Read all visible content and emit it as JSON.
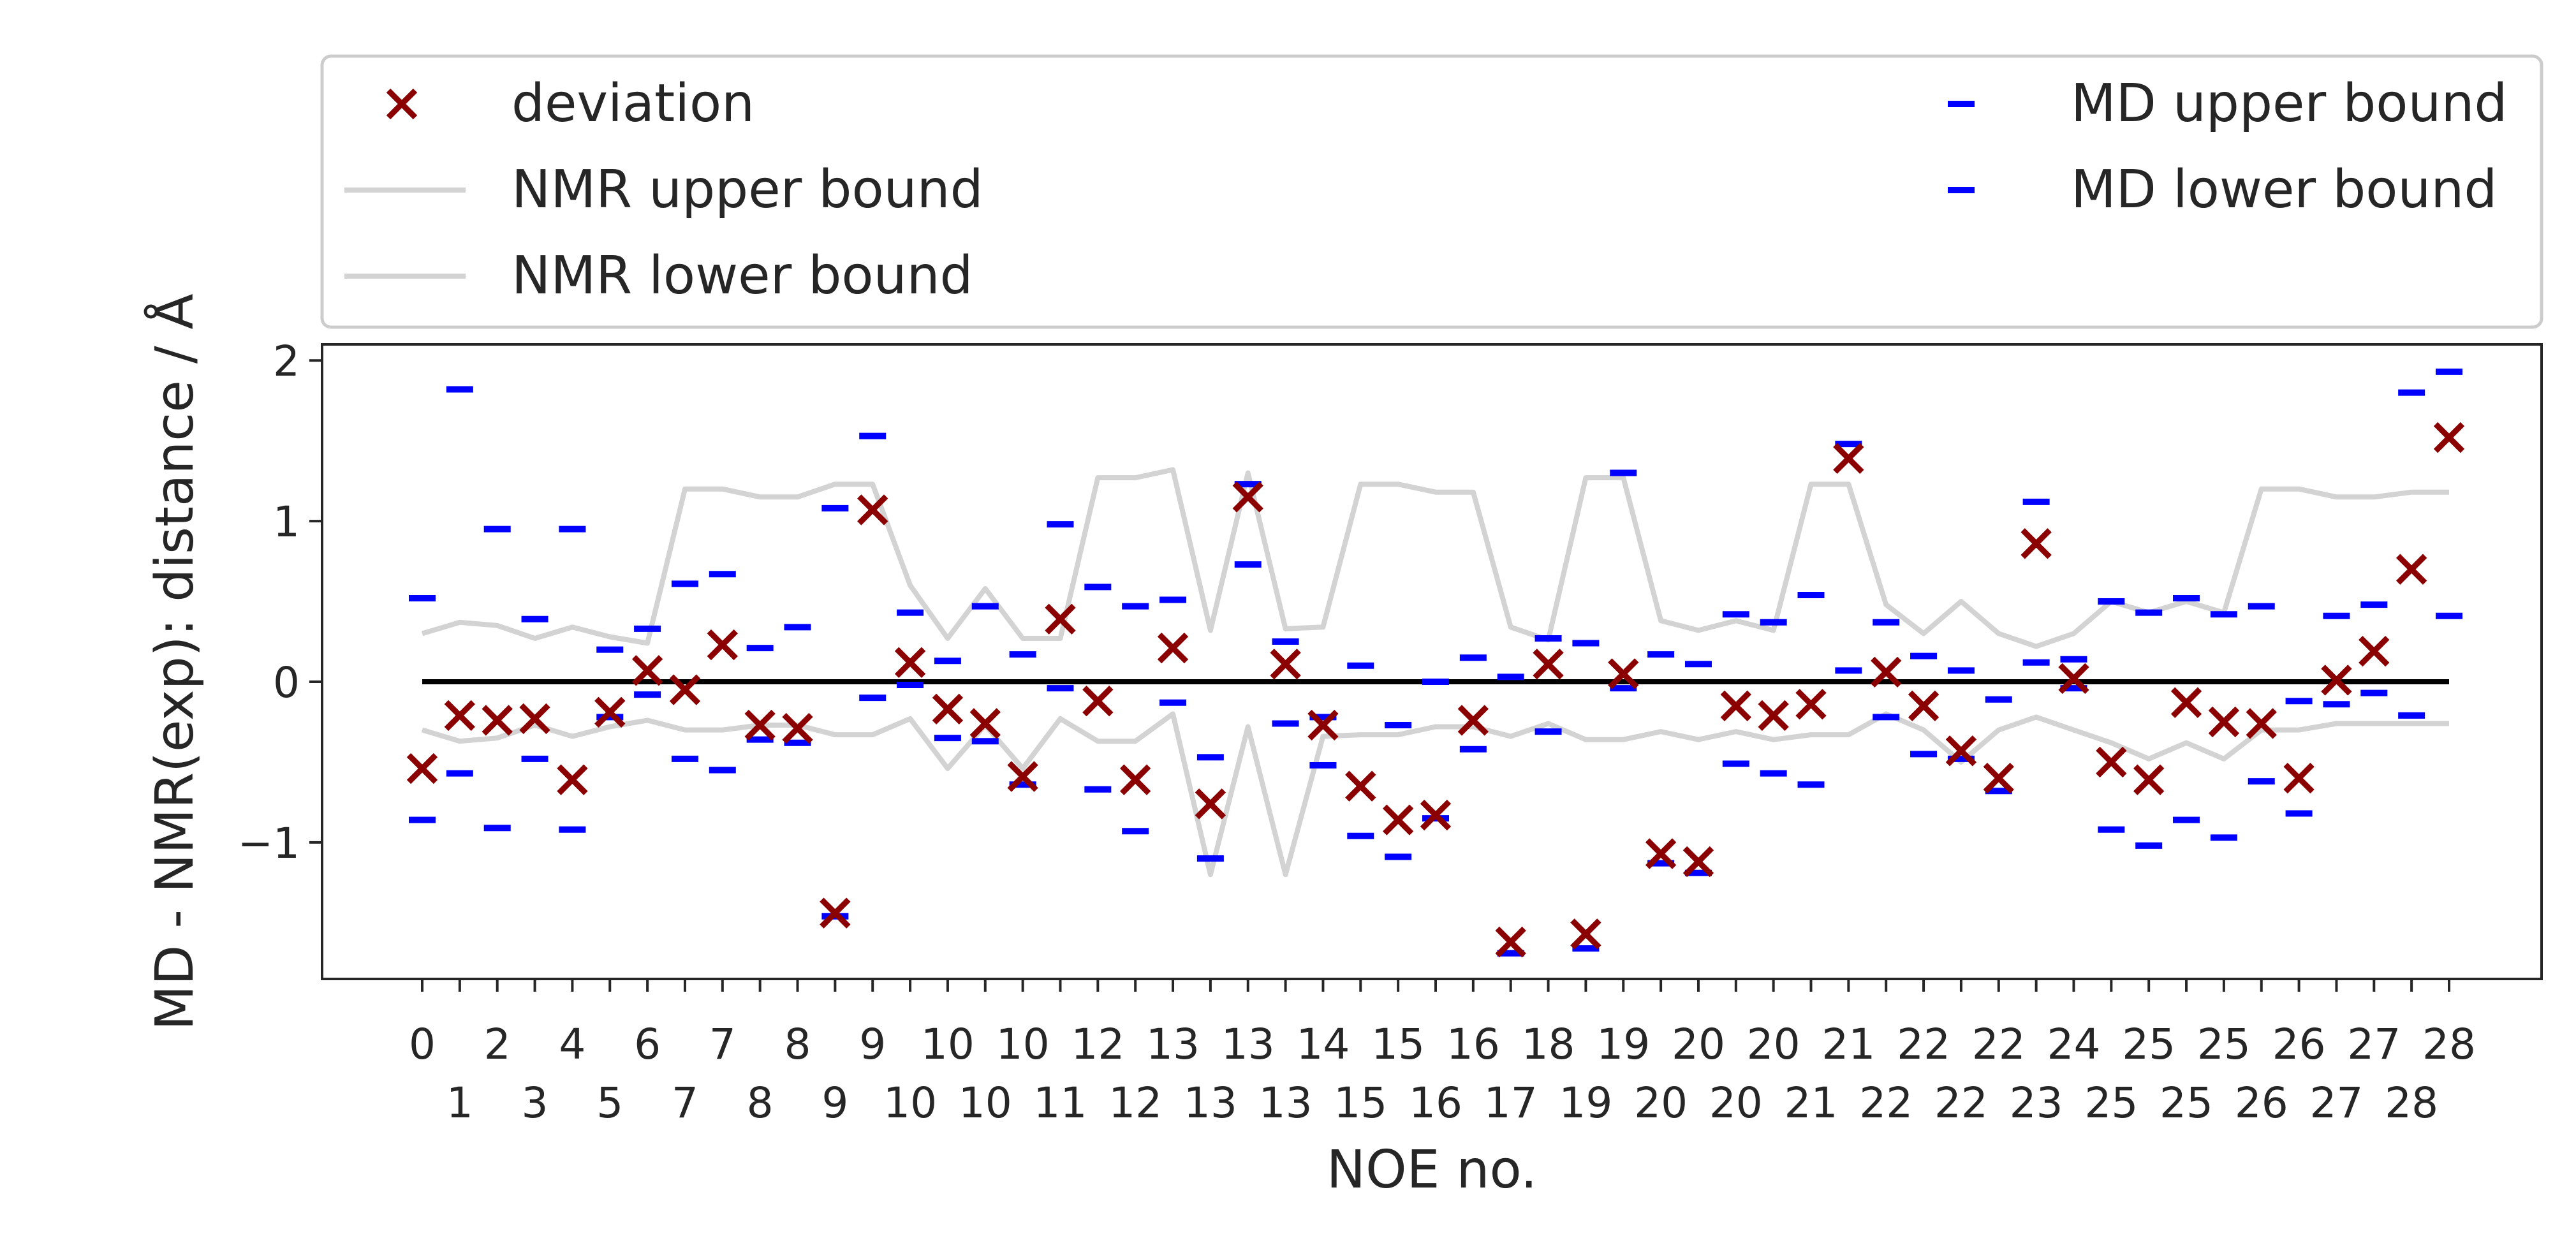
{
  "chart_data": {
    "type": "scatter",
    "title": "",
    "xlabel": "NOE no.",
    "ylabel": "MD - NMR(exp): distance / Å",
    "ylim": [
      -1.85,
      2.1
    ],
    "yticks": [
      -1,
      0,
      1,
      2
    ],
    "ytick_labels": [
      "−1",
      "0",
      "1",
      "2"
    ],
    "grid": false,
    "legend_placement": "above-plot",
    "x_labels": [
      "0",
      "1",
      "2",
      "3",
      "4",
      "5",
      "6",
      "7",
      "7",
      "8",
      "8",
      "9",
      "9",
      "10",
      "10",
      "10",
      "10",
      "11",
      "12",
      "12",
      "13",
      "13",
      "13",
      "13",
      "14",
      "15",
      "15",
      "16",
      "16",
      "17",
      "18",
      "19",
      "19",
      "20",
      "20",
      "20",
      "20",
      "21",
      "21",
      "22",
      "22",
      "22",
      "22",
      "23",
      "24",
      "25",
      "25",
      "25",
      "25",
      "26",
      "26",
      "27",
      "27",
      "28",
      "28"
    ],
    "series": [
      {
        "name": "deviation",
        "marker": "x",
        "color": "#8b0000",
        "values": [
          -0.54,
          -0.21,
          -0.24,
          -0.23,
          -0.61,
          -0.19,
          0.07,
          -0.05,
          0.23,
          -0.27,
          -0.29,
          -1.44,
          1.07,
          0.12,
          -0.17,
          -0.26,
          -0.59,
          0.39,
          -0.12,
          -0.61,
          0.21,
          -0.76,
          1.15,
          0.11,
          -0.27,
          -0.65,
          -0.86,
          -0.83,
          -0.24,
          -1.62,
          0.11,
          -1.57,
          0.05,
          -1.07,
          -1.12,
          -0.15,
          -0.21,
          -0.14,
          1.39,
          0.06,
          -0.15,
          -0.43,
          -0.6,
          0.86,
          0.02,
          -0.5,
          -0.61,
          -0.13,
          -0.25,
          -0.26,
          -0.6,
          0.01,
          0.19,
          0.7,
          1.52
        ]
      },
      {
        "name": "NMR upper bound",
        "marker": "line",
        "color": "#d3d3d3",
        "values": [
          0.3,
          0.37,
          0.35,
          0.27,
          0.34,
          0.28,
          0.24,
          1.2,
          1.2,
          1.15,
          1.15,
          1.23,
          1.23,
          0.6,
          0.27,
          0.58,
          0.27,
          0.27,
          1.27,
          1.27,
          1.32,
          0.32,
          1.3,
          0.33,
          0.34,
          1.23,
          1.23,
          1.18,
          1.18,
          0.34,
          0.26,
          1.27,
          1.27,
          0.38,
          0.32,
          0.38,
          0.32,
          1.23,
          1.23,
          0.48,
          0.3,
          0.5,
          0.3,
          0.22,
          0.3,
          0.5,
          0.43,
          0.5,
          0.43,
          1.2,
          1.2,
          1.15,
          1.15,
          1.18,
          1.18
        ]
      },
      {
        "name": "NMR lower bound",
        "marker": "line",
        "color": "#d3d3d3",
        "values": [
          -0.3,
          -0.37,
          -0.35,
          -0.27,
          -0.34,
          -0.28,
          -0.24,
          -0.3,
          -0.3,
          -0.27,
          -0.27,
          -0.33,
          -0.33,
          -0.23,
          -0.54,
          -0.27,
          -0.54,
          -0.23,
          -0.37,
          -0.37,
          -0.2,
          -1.2,
          -0.28,
          -1.2,
          -0.34,
          -0.33,
          -0.33,
          -0.28,
          -0.28,
          -0.34,
          -0.26,
          -0.36,
          -0.36,
          -0.31,
          -0.36,
          -0.31,
          -0.36,
          -0.33,
          -0.33,
          -0.2,
          -0.3,
          -0.5,
          -0.3,
          -0.22,
          -0.3,
          -0.38,
          -0.48,
          -0.38,
          -0.48,
          -0.3,
          -0.3,
          -0.26,
          -0.26,
          -0.26,
          -0.26
        ]
      },
      {
        "name": "MD upper bound",
        "marker": "dash",
        "color": "#0000ff",
        "values": [
          0.52,
          1.82,
          0.95,
          0.39,
          0.95,
          0.2,
          0.33,
          0.61,
          0.67,
          0.21,
          0.34,
          1.08,
          1.53,
          0.43,
          0.13,
          0.47,
          0.17,
          0.98,
          0.59,
          0.47,
          0.51,
          -0.47,
          1.23,
          0.25,
          -0.22,
          0.1,
          -0.27,
          0.0,
          0.15,
          0.03,
          0.27,
          0.24,
          1.3,
          0.17,
          0.11,
          0.42,
          0.37,
          0.54,
          1.48,
          0.37,
          0.16,
          0.07,
          -0.11,
          1.12,
          0.14,
          0.5,
          0.43,
          0.52,
          0.42,
          0.47,
          -0.12,
          0.41,
          0.48,
          1.8,
          1.93
        ]
      },
      {
        "name": "MD lower bound",
        "marker": "dash",
        "color": "#0000ff",
        "values": [
          -0.86,
          -0.57,
          -0.91,
          -0.48,
          -0.92,
          -0.22,
          -0.08,
          -0.48,
          -0.55,
          -0.36,
          -0.38,
          -1.46,
          -0.1,
          -0.02,
          -0.35,
          -0.37,
          -0.64,
          -0.04,
          -0.67,
          -0.93,
          -0.13,
          -1.1,
          0.73,
          -0.26,
          -0.52,
          -0.96,
          -1.09,
          -0.85,
          -0.42,
          -1.69,
          -0.31,
          -1.66,
          -0.04,
          -1.13,
          -1.19,
          -0.51,
          -0.57,
          -0.64,
          0.07,
          -0.22,
          -0.45,
          -0.48,
          -0.68,
          0.12,
          -0.04,
          -0.92,
          -1.02,
          -0.86,
          -0.97,
          -0.62,
          -0.82,
          -0.14,
          -0.07,
          -0.21,
          0.41
        ]
      },
      {
        "name": "",
        "marker": "line",
        "color": "#000000",
        "values": [
          0,
          0
        ]
      }
    ]
  }
}
